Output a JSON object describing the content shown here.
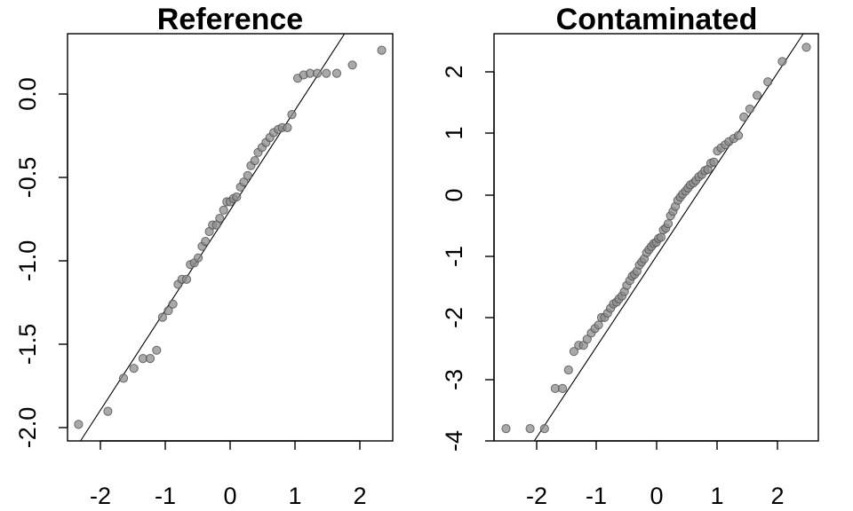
{
  "chart_data": [
    {
      "type": "scatter",
      "title": "Reference",
      "xlabel": "",
      "ylabel": "",
      "xlim": [
        -2.5,
        2.5
      ],
      "ylim": [
        -2.1,
        0.37
      ],
      "xticks": [
        -2,
        -1,
        0,
        1,
        2
      ],
      "xtick_labels": [
        "-2",
        "-1",
        "0",
        "1",
        "2"
      ],
      "yticks": [
        -2.0,
        -1.5,
        -1.0,
        -0.5,
        0.0
      ],
      "ytick_labels": [
        "-2.0",
        "-1.5",
        "-1.0",
        "-0.5",
        "0.0"
      ],
      "grid": false,
      "reference_line": {
        "from": [
          -2.3,
          -2.1
        ],
        "to": [
          1.76,
          0.37
        ]
      },
      "x": [
        -2.33,
        -1.88,
        -1.64,
        -1.48,
        -1.34,
        -1.23,
        -1.13,
        -1.04,
        -0.95,
        -0.88,
        -0.8,
        -0.74,
        -0.67,
        -0.61,
        -0.55,
        -0.49,
        -0.43,
        -0.38,
        -0.32,
        -0.27,
        -0.21,
        -0.16,
        -0.1,
        -0.05,
        0.0,
        0.05,
        0.1,
        0.16,
        0.21,
        0.27,
        0.32,
        0.38,
        0.43,
        0.49,
        0.55,
        0.61,
        0.67,
        0.74,
        0.8,
        0.88,
        0.95,
        1.04,
        1.13,
        1.23,
        1.34,
        1.48,
        1.64,
        1.88,
        2.33
      ],
      "y": [
        -2.0,
        -1.92,
        -1.72,
        -1.66,
        -1.6,
        -1.6,
        -1.55,
        -1.35,
        -1.31,
        -1.27,
        -1.15,
        -1.12,
        -1.12,
        -1.03,
        -1.02,
        -0.99,
        -0.92,
        -0.89,
        -0.83,
        -0.79,
        -0.79,
        -0.75,
        -0.7,
        -0.65,
        -0.65,
        -0.63,
        -0.62,
        -0.56,
        -0.53,
        -0.49,
        -0.43,
        -0.4,
        -0.35,
        -0.32,
        -0.29,
        -0.26,
        -0.23,
        -0.21,
        -0.2,
        -0.2,
        -0.12,
        0.1,
        0.12,
        0.13,
        0.13,
        0.13,
        0.13,
        0.18,
        0.27
      ]
    },
    {
      "type": "scatter",
      "title": "Contaminated",
      "xlabel": "",
      "ylabel": "",
      "xlim": [
        -2.7,
        2.7
      ],
      "ylim": [
        -4.0,
        2.6
      ],
      "xticks": [
        -2,
        -1,
        0,
        1,
        2
      ],
      "xtick_labels": [
        "-2",
        "-1",
        "0",
        "1",
        "2"
      ],
      "yticks": [
        -4,
        -3,
        -2,
        -1,
        0,
        1,
        2
      ],
      "ytick_labels": [
        "-4",
        "-3",
        "-2",
        "-1",
        "0",
        "1",
        "2"
      ],
      "grid": false,
      "reference_line": {
        "from": [
          -2.03,
          -4.0
        ],
        "to": [
          2.45,
          2.6
        ]
      },
      "x": [
        -2.5,
        -2.1,
        -1.86,
        -1.68,
        -1.56,
        -1.46,
        -1.37,
        -1.29,
        -1.21,
        -1.15,
        -1.08,
        -1.02,
        -0.96,
        -0.91,
        -0.86,
        -0.81,
        -0.76,
        -0.71,
        -0.66,
        -0.62,
        -0.57,
        -0.53,
        -0.49,
        -0.44,
        -0.4,
        -0.36,
        -0.32,
        -0.28,
        -0.24,
        -0.2,
        -0.16,
        -0.12,
        -0.08,
        -0.04,
        0.0,
        0.04,
        0.08,
        0.12,
        0.16,
        0.2,
        0.24,
        0.28,
        0.32,
        0.36,
        0.4,
        0.44,
        0.49,
        0.53,
        0.57,
        0.62,
        0.66,
        0.71,
        0.76,
        0.81,
        0.86,
        0.91,
        0.96,
        1.02,
        1.08,
        1.15,
        1.21,
        1.29,
        1.37,
        1.46,
        1.56,
        1.68,
        1.86,
        2.1,
        2.5
      ],
      "y": [
        -3.8,
        -3.8,
        -3.8,
        -3.15,
        -3.15,
        -2.85,
        -2.55,
        -2.45,
        -2.45,
        -2.35,
        -2.25,
        -2.18,
        -2.12,
        -2.0,
        -2.0,
        -1.93,
        -1.85,
        -1.78,
        -1.75,
        -1.7,
        -1.65,
        -1.58,
        -1.48,
        -1.4,
        -1.33,
        -1.3,
        -1.25,
        -1.15,
        -1.1,
        -1.05,
        -0.95,
        -0.9,
        -0.85,
        -0.8,
        -0.78,
        -0.72,
        -0.7,
        -0.58,
        -0.55,
        -0.48,
        -0.35,
        -0.28,
        -0.2,
        -0.1,
        -0.05,
        0.0,
        0.05,
        0.1,
        0.15,
        0.18,
        0.22,
        0.28,
        0.32,
        0.38,
        0.4,
        0.5,
        0.52,
        0.7,
        0.75,
        0.8,
        0.85,
        0.9,
        0.95,
        1.25,
        1.38,
        1.6,
        1.82,
        2.15,
        2.38
      ]
    }
  ]
}
